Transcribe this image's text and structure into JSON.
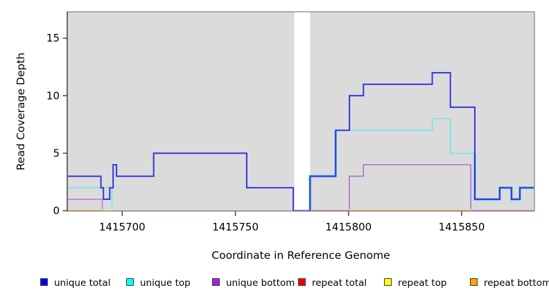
{
  "chart_data": {
    "type": "line",
    "step": true,
    "title": "",
    "xlabel": "Coordinate in Reference Genome",
    "ylabel": "Read Coverage Depth",
    "xlim": [
      1415676,
      1415882
    ],
    "ylim": [
      0,
      17.3
    ],
    "x_ticks": [
      1415700,
      1415750,
      1415800,
      1415850
    ],
    "y_ticks": [
      0,
      5,
      10,
      15
    ],
    "grid": false,
    "legend_position": "bottom",
    "plot_bg": "#DBDBDB",
    "border_color": "#7F7F7F",
    "axis_color": "#3C3C3C",
    "no_data_gap": [
      1415776,
      1415783
    ],
    "series": [
      {
        "name": "unique total",
        "color": "#0000EE",
        "segments": [
          [
            [
              1415676,
              3
            ],
            [
              1415690.6,
              3
            ],
            [
              1415690.6,
              2
            ],
            [
              1415691.7,
              2
            ],
            [
              1415691.7,
              1
            ],
            [
              1415694.5,
              1
            ],
            [
              1415694.5,
              2
            ],
            [
              1415696,
              2
            ],
            [
              1415696,
              4
            ],
            [
              1415697.5,
              4
            ],
            [
              1415697.5,
              3
            ],
            [
              1415713.9,
              3
            ],
            [
              1415713.9,
              5
            ],
            [
              1415755,
              5
            ],
            [
              1415755,
              2
            ],
            [
              1415775.6,
              2
            ],
            [
              1415775.6,
              0
            ],
            [
              1415783,
              0
            ],
            [
              1415783,
              3
            ],
            [
              1415794.3,
              3
            ],
            [
              1415794.3,
              7
            ],
            [
              1415800.4,
              7
            ],
            [
              1415800.4,
              10
            ],
            [
              1415806.6,
              10
            ],
            [
              1415806.6,
              11
            ],
            [
              1415837,
              11
            ],
            [
              1415837,
              12
            ],
            [
              1415845,
              12
            ],
            [
              1415845,
              9
            ],
            [
              1415855.8,
              9
            ],
            [
              1415855.8,
              1
            ],
            [
              1415866.8,
              1
            ],
            [
              1415866.8,
              2
            ],
            [
              1415872,
              2
            ],
            [
              1415872,
              1
            ],
            [
              1415875.7,
              1
            ],
            [
              1415875.7,
              2
            ],
            [
              1415881.8,
              2
            ]
          ]
        ]
      },
      {
        "name": "unique top",
        "color": "#00FFFF",
        "segments": [
          [
            [
              1415676,
              2
            ],
            [
              1415695.5,
              2
            ],
            [
              1415695.5,
              0
            ],
            [
              1415775.8,
              0
            ]
          ],
          [
            [
              1415783,
              0
            ],
            [
              1415783,
              3
            ],
            [
              1415794.3,
              3
            ],
            [
              1415794.3,
              7
            ],
            [
              1415837,
              7
            ],
            [
              1415837,
              8
            ],
            [
              1415845,
              8
            ],
            [
              1415845,
              5
            ],
            [
              1415855.8,
              5
            ],
            [
              1415855.8,
              1
            ],
            [
              1415866.8,
              1
            ],
            [
              1415866.8,
              2
            ],
            [
              1415872,
              2
            ],
            [
              1415872,
              1
            ],
            [
              1415875.7,
              1
            ],
            [
              1415875.7,
              2
            ],
            [
              1415881.8,
              2
            ]
          ]
        ]
      },
      {
        "name": "unique bottom",
        "color": "#A020F0",
        "segments": [
          [
            [
              1415676,
              1
            ],
            [
              1415691.2,
              1
            ],
            [
              1415691.2,
              0
            ],
            [
              1415775.8,
              0
            ]
          ],
          [
            [
              1415783,
              0
            ],
            [
              1415800.4,
              0
            ],
            [
              1415800.4,
              3
            ],
            [
              1415806.6,
              3
            ],
            [
              1415806.6,
              4
            ],
            [
              1415854,
              4
            ],
            [
              1415854,
              0
            ],
            [
              1415881.8,
              0
            ]
          ]
        ]
      },
      {
        "name": "repeat total",
        "color": "#EE0000",
        "segments": [
          [
            [
              1415676,
              0
            ],
            [
              1415775.8,
              0
            ]
          ],
          [
            [
              1415783,
              0
            ],
            [
              1415881.8,
              0
            ]
          ]
        ]
      },
      {
        "name": "repeat top",
        "color": "#FFFF00",
        "segments": [
          [
            [
              1415676,
              0
            ],
            [
              1415775.8,
              0
            ]
          ],
          [
            [
              1415783,
              0
            ],
            [
              1415881.8,
              0
            ]
          ]
        ]
      },
      {
        "name": "repeat bottom",
        "color": "#FFA500",
        "segments": [
          [
            [
              1415676,
              0
            ],
            [
              1415691.7,
              0
            ]
          ],
          [
            [
              1415800.4,
              0
            ],
            [
              1415854,
              0
            ]
          ]
        ]
      }
    ],
    "render_lines": [
      {
        "name": "blue-cyan-overlap-halo-rise",
        "color": "#69C8EF",
        "width": 3.6,
        "points": [
          [
            1415783,
            0.1
          ],
          [
            1415783,
            3
          ],
          [
            1415794.3,
            3
          ],
          [
            1415794.3,
            7
          ]
        ]
      },
      {
        "name": "blue-cyan-overlap-halo-tail",
        "color": "#69C8EF",
        "width": 3.6,
        "points": [
          [
            1415855.8,
            5
          ],
          [
            1415855.8,
            1
          ],
          [
            1415866.8,
            1
          ],
          [
            1415866.8,
            2
          ],
          [
            1415872,
            2
          ],
          [
            1415872,
            1
          ],
          [
            1415875.7,
            1
          ],
          [
            1415875.7,
            2
          ],
          [
            1415881.8,
            2
          ]
        ]
      },
      {
        "name": "baseline-orange-left",
        "color": "#FFA500",
        "width": 1.8,
        "points": [
          [
            1415676,
            0
          ],
          [
            1415691.7,
            0
          ]
        ]
      },
      {
        "name": "baseline-yellow-left",
        "color": "#E6E692",
        "width": 1.4,
        "points": [
          [
            1415691.7,
            0
          ],
          [
            1415695.5,
            0
          ]
        ]
      },
      {
        "name": "baseline-green-blend",
        "color": "#8FD98F",
        "width": 1.6,
        "points": [
          [
            1415695.5,
            0
          ],
          [
            1415775.8,
            0
          ]
        ]
      },
      {
        "name": "baseline-pink-blend-1",
        "color": "#C75397",
        "width": 1.6,
        "points": [
          [
            1415783,
            0
          ],
          [
            1415800.4,
            0
          ]
        ]
      },
      {
        "name": "baseline-orange-right",
        "color": "#FFA500",
        "width": 1.8,
        "points": [
          [
            1415800.4,
            0
          ],
          [
            1415854,
            0
          ]
        ]
      },
      {
        "name": "baseline-pink-blend-2",
        "color": "#C75397",
        "width": 1.6,
        "points": [
          [
            1415854,
            0
          ],
          [
            1415881.8,
            0
          ]
        ]
      },
      {
        "name": "unique-bottom-left",
        "color": "#BB79DF",
        "width": 1.6,
        "points": [
          [
            1415676,
            1
          ],
          [
            1415691.2,
            1
          ],
          [
            1415691.2,
            0.15
          ]
        ]
      },
      {
        "name": "unique-bottom-right",
        "color": "#B06CD8",
        "width": 1.6,
        "points": [
          [
            1415800.4,
            0.15
          ],
          [
            1415800.4,
            3
          ],
          [
            1415806.6,
            3
          ],
          [
            1415806.6,
            4
          ],
          [
            1415854,
            4
          ],
          [
            1415854,
            0.15
          ]
        ]
      },
      {
        "name": "unique-top-left",
        "color": "#72E6E6",
        "width": 1.6,
        "points": [
          [
            1415676,
            2
          ],
          [
            1415695.5,
            2
          ],
          [
            1415695.5,
            0.15
          ]
        ]
      },
      {
        "name": "unique-top-right",
        "color": "#72E6E6",
        "width": 1.6,
        "points": [
          [
            1415783,
            0.15
          ],
          [
            1415783,
            3
          ],
          [
            1415794.3,
            3
          ],
          [
            1415794.3,
            7
          ],
          [
            1415837,
            7
          ],
          [
            1415837,
            8
          ],
          [
            1415845,
            8
          ],
          [
            1415845,
            5
          ],
          [
            1415855.8,
            5
          ],
          [
            1415855.8,
            1
          ],
          [
            1415866.8,
            1
          ],
          [
            1415866.8,
            2
          ],
          [
            1415872,
            2
          ],
          [
            1415872,
            1
          ],
          [
            1415875.7,
            1
          ],
          [
            1415875.7,
            2
          ],
          [
            1415881.8,
            2
          ]
        ]
      },
      {
        "name": "unique-total",
        "color": "#3434DF",
        "width": 2,
        "points": [
          [
            1415676,
            3
          ],
          [
            1415690.6,
            3
          ],
          [
            1415690.6,
            2
          ],
          [
            1415691.7,
            2
          ],
          [
            1415691.7,
            1
          ],
          [
            1415694.5,
            1
          ],
          [
            1415694.5,
            2
          ],
          [
            1415696,
            2
          ],
          [
            1415696,
            4
          ],
          [
            1415697.5,
            4
          ],
          [
            1415697.5,
            3
          ],
          [
            1415713.9,
            3
          ],
          [
            1415713.9,
            5
          ],
          [
            1415755,
            5
          ],
          [
            1415755,
            2
          ],
          [
            1415775.6,
            2
          ],
          [
            1415775.6,
            0
          ],
          [
            1415783,
            0
          ],
          [
            1415783,
            3
          ],
          [
            1415794.3,
            3
          ],
          [
            1415794.3,
            7
          ],
          [
            1415800.4,
            7
          ],
          [
            1415800.4,
            10
          ],
          [
            1415806.6,
            10
          ],
          [
            1415806.6,
            11
          ],
          [
            1415837,
            11
          ],
          [
            1415837,
            12
          ],
          [
            1415845,
            12
          ],
          [
            1415845,
            9
          ],
          [
            1415855.8,
            9
          ],
          [
            1415855.8,
            1
          ],
          [
            1415866.8,
            1
          ],
          [
            1415866.8,
            2
          ],
          [
            1415872,
            2
          ],
          [
            1415872,
            1
          ],
          [
            1415875.7,
            1
          ],
          [
            1415875.7,
            2
          ],
          [
            1415881.8,
            2
          ]
        ]
      }
    ]
  },
  "legend": {
    "items": [
      {
        "label": "unique total",
        "color": "#0000EE"
      },
      {
        "label": "unique top",
        "color": "#00FFFF"
      },
      {
        "label": "unique bottom",
        "color": "#A020F0"
      },
      {
        "label": "repeat total",
        "color": "#EE0000"
      },
      {
        "label": "repeat top",
        "color": "#FFFF00"
      },
      {
        "label": "repeat bottom",
        "color": "#FFA500"
      }
    ]
  }
}
